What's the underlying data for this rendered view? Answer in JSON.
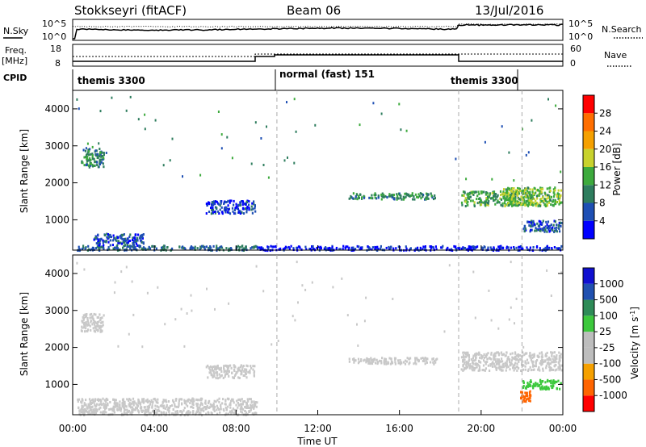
{
  "header": {
    "station": "Stokkseyri (fitACF)",
    "beam": "Beam 06",
    "date": "13/Jul/2016"
  },
  "top_panels": {
    "nsky_label": "N.Sky",
    "nsky_ticks": [
      "10^5",
      "10^0"
    ],
    "nsearch_label": "N.Search",
    "nsearch_ticks": [
      "10^5",
      "10^0"
    ],
    "freq_label": "Freq.",
    "freq_unit": "[MHz]",
    "freq_ticks": [
      "18",
      "8"
    ],
    "nave_label": "Nave",
    "nave_ticks": [
      "60",
      "0"
    ],
    "cpid_label": "CPID",
    "cpid_segments": [
      "themis 3300",
      "normal (fast) 151",
      "themis 3300"
    ]
  },
  "colors": {
    "power": [
      "#0000ff",
      "#1e4fb4",
      "#2e7d5e",
      "#3daa3d",
      "#c8d22d",
      "#f5a000",
      "#ff6e00",
      "#ff0000"
    ],
    "velocity": [
      "#ff0000",
      "#ff6400",
      "#f5a000",
      "#bdbdbd",
      "#bdbdbd",
      "#3cc83c",
      "#2e8b57",
      "#2050b0",
      "#1010d0"
    ],
    "ground_scatter": "#c8c8c8"
  },
  "chart_data": [
    {
      "type": "heatmap",
      "title": "Power",
      "xlabel": "Time UT",
      "ylabel": "Slant Range [km]",
      "x_ticks": [
        "00:00",
        "04:00",
        "08:00",
        "12:00",
        "16:00",
        "20:00",
        "00:00"
      ],
      "xlim_hours": [
        0,
        24
      ],
      "ylim_km": [
        180,
        4500
      ],
      "y_ticks": [
        1000,
        2000,
        3000,
        4000
      ],
      "colorbar": {
        "label": "Power [dB]",
        "range": [
          0,
          32
        ],
        "ticks": [
          4,
          8,
          12,
          16,
          20,
          24,
          28
        ]
      },
      "regions": [
        {
          "t0": 0.4,
          "t1": 1.5,
          "r0": 2450,
          "r1": 2950,
          "value": 10
        },
        {
          "t0": 0.2,
          "t1": 9.0,
          "r0": 200,
          "r1": 330,
          "value": 8
        },
        {
          "t0": 1.0,
          "t1": 3.5,
          "r0": 330,
          "r1": 650,
          "value": 6
        },
        {
          "t0": 6.5,
          "t1": 8.9,
          "r0": 1200,
          "r1": 1550,
          "value": 5
        },
        {
          "t0": 13.5,
          "t1": 17.8,
          "r0": 1580,
          "r1": 1750,
          "value": 11
        },
        {
          "t0": 19.0,
          "t1": 22.5,
          "r0": 1400,
          "r1": 1800,
          "value": 13
        },
        {
          "t0": 21.0,
          "t1": 23.9,
          "r0": 1400,
          "r1": 1900,
          "value": 15
        },
        {
          "t0": 22.0,
          "t1": 23.9,
          "r0": 700,
          "r1": 1000,
          "value": 6
        },
        {
          "t0": 9.0,
          "t1": 23.9,
          "r0": 200,
          "r1": 320,
          "value": 3
        }
      ]
    },
    {
      "type": "heatmap",
      "title": "Velocity",
      "xlabel": "Time UT",
      "ylabel": "Slant Range [km]",
      "x_ticks": [
        "00:00",
        "04:00",
        "08:00",
        "12:00",
        "16:00",
        "20:00",
        "00:00"
      ],
      "xlim_hours": [
        0,
        24
      ],
      "ylim_km": [
        180,
        4500
      ],
      "y_ticks": [
        1000,
        2000,
        3000,
        4000
      ],
      "colorbar": {
        "label": "Velocity [m s^-1]",
        "ticks": [
          "1000",
          "500",
          "100",
          "25",
          "-25",
          "-100",
          "-500",
          "-1000"
        ]
      },
      "regions": [
        {
          "t0": 0.4,
          "t1": 1.5,
          "r0": 2450,
          "r1": 2950,
          "value": 0
        },
        {
          "t0": 0.2,
          "t1": 9.0,
          "r0": 200,
          "r1": 650,
          "value": 0
        },
        {
          "t0": 6.5,
          "t1": 8.9,
          "r0": 1200,
          "r1": 1550,
          "value": 0
        },
        {
          "t0": 13.5,
          "t1": 17.8,
          "r0": 1580,
          "r1": 1750,
          "value": 0
        },
        {
          "t0": 19.0,
          "t1": 23.9,
          "r0": 1400,
          "r1": 1900,
          "value": 0
        },
        {
          "t0": 22.0,
          "t1": 23.9,
          "r0": 900,
          "r1": 1150,
          "value": 80
        },
        {
          "t0": 21.9,
          "t1": 22.4,
          "r0": 550,
          "r1": 850,
          "value": -700
        }
      ]
    }
  ],
  "cpid_changes_hours": [
    10.0,
    18.9,
    22.0
  ]
}
